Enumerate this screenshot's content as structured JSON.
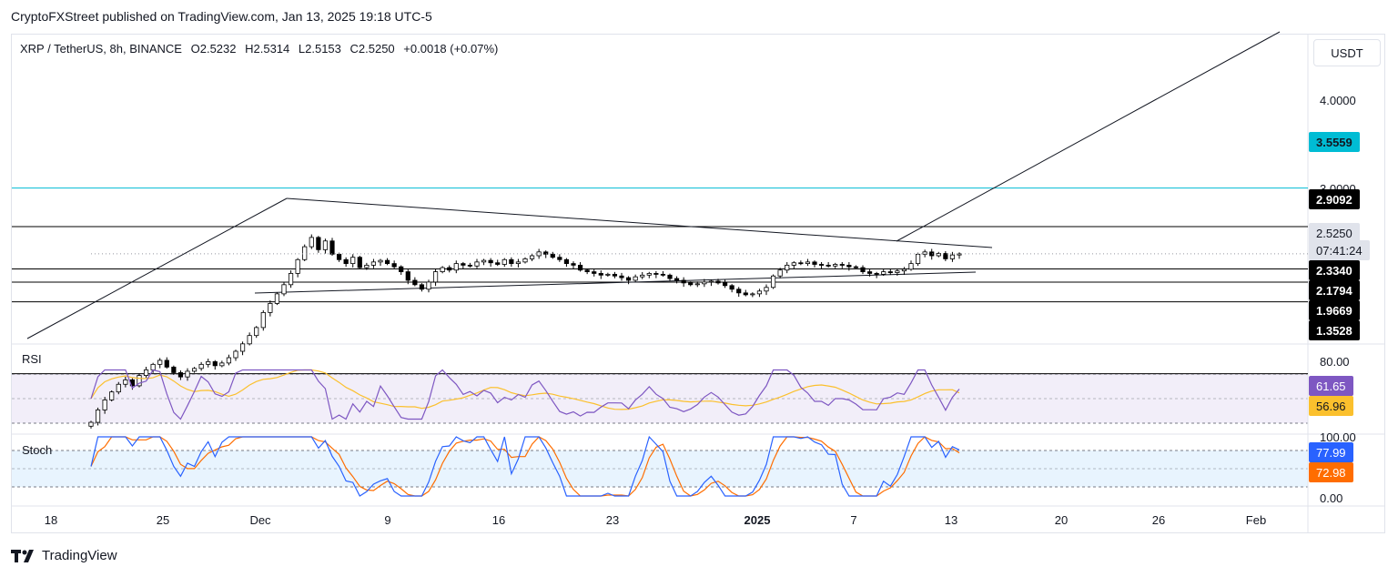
{
  "publisher_line": "CryptoFXStreet published on TradingView.com, Jan 13, 2025 19:18 UTC-5",
  "header": {
    "symbol": "XRP / TetherUS, 8h, BINANCE",
    "open": "O2.5232",
    "high": "H2.5314",
    "low": "L2.5153",
    "close": "C2.5250",
    "change": "+0.0018 (+0.07%)"
  },
  "currency_button": "USDT",
  "price_axis": {
    "tick_labels": [
      "4.0000",
      "3.0000"
    ],
    "tags": {
      "resistance_cyan": "3.5559",
      "level_1": "2.9092",
      "current_price": "2.5250",
      "countdown": "07:41:24",
      "level_2": "2.3340",
      "level_3": "2.1794",
      "level_4": "1.9669",
      "level_5": "1.3528"
    }
  },
  "rsi_pane": {
    "label": "RSI",
    "tick_label": "80.00",
    "rsi_value": "61.65",
    "rsi_ma_value": "56.96"
  },
  "stoch_pane": {
    "label": "Stoch",
    "tick_top": "100.00",
    "tick_bottom": "0.00",
    "k_value": "77.99",
    "d_value": "72.98"
  },
  "time_axis": [
    "18",
    "25",
    "Dec",
    "9",
    "16",
    "23",
    "2025",
    "7",
    "13",
    "20",
    "26",
    "Feb"
  ],
  "footer_brand": "TradingView",
  "colors": {
    "up": "#ffffff",
    "down": "#000000",
    "cyan": "#00bcd4",
    "rsi": "#7e57c2",
    "rsi_ma": "#fbc02d",
    "stoch_k": "#2962ff",
    "stoch_d": "#ff6d00",
    "tag_dark": "#000000"
  },
  "chart_data": [
    {
      "type": "candlestick",
      "title": "XRP / TetherUS, 8h, BINANCE",
      "ylabel": "USDT",
      "scale": "log",
      "x_labels": [
        "18",
        "25",
        "Dec",
        "9",
        "16",
        "23",
        "2025",
        "7",
        "13",
        "20",
        "26",
        "Feb"
      ],
      "closes_approx": [
        1.05,
        1.12,
        1.18,
        1.23,
        1.28,
        1.31,
        1.27,
        1.34,
        1.38,
        1.42,
        1.45,
        1.4,
        1.36,
        1.33,
        1.37,
        1.39,
        1.42,
        1.44,
        1.41,
        1.43,
        1.47,
        1.52,
        1.58,
        1.65,
        1.72,
        1.86,
        1.95,
        2.05,
        2.15,
        2.28,
        2.45,
        2.62,
        2.75,
        2.58,
        2.7,
        2.52,
        2.45,
        2.4,
        2.48,
        2.35,
        2.38,
        2.42,
        2.44,
        2.4,
        2.36,
        2.3,
        2.2,
        2.15,
        2.1,
        2.18,
        2.3,
        2.35,
        2.32,
        2.4,
        2.38,
        2.37,
        2.42,
        2.44,
        2.41,
        2.39,
        2.45,
        2.4,
        2.42,
        2.46,
        2.5,
        2.55,
        2.52,
        2.48,
        2.45,
        2.4,
        2.38,
        2.32,
        2.3,
        2.28,
        2.26,
        2.27,
        2.25,
        2.23,
        2.2,
        2.24,
        2.26,
        2.28,
        2.27,
        2.26,
        2.22,
        2.2,
        2.17,
        2.15,
        2.16,
        2.18,
        2.19,
        2.17,
        2.14,
        2.1,
        2.06,
        2.04,
        2.05,
        2.08,
        2.12,
        2.25,
        2.32,
        2.38,
        2.41,
        2.4,
        2.42,
        2.39,
        2.38,
        2.37,
        2.39,
        2.38,
        2.36,
        2.35,
        2.3,
        2.28,
        2.27,
        2.3,
        2.29,
        2.31,
        2.33,
        2.4,
        2.52,
        2.55,
        2.5,
        2.53,
        2.46,
        2.51,
        2.525
      ],
      "horizontal_levels": [
        3.5559,
        2.9092,
        2.334,
        2.1794,
        1.9669,
        1.3528
      ]
    },
    {
      "type": "line",
      "title": "RSI",
      "series": [
        {
          "values": [
            61.65
          ]
        },
        {
          "values": [
            56.96
          ]
        }
      ],
      "ylim": [
        20,
        80
      ]
    },
    {
      "type": "line",
      "title": "Stoch",
      "series": [
        {
          "values": [
            77.99
          ]
        },
        {
          "values": [
            72.98
          ]
        }
      ],
      "ylim": [
        0,
        100
      ]
    }
  ]
}
